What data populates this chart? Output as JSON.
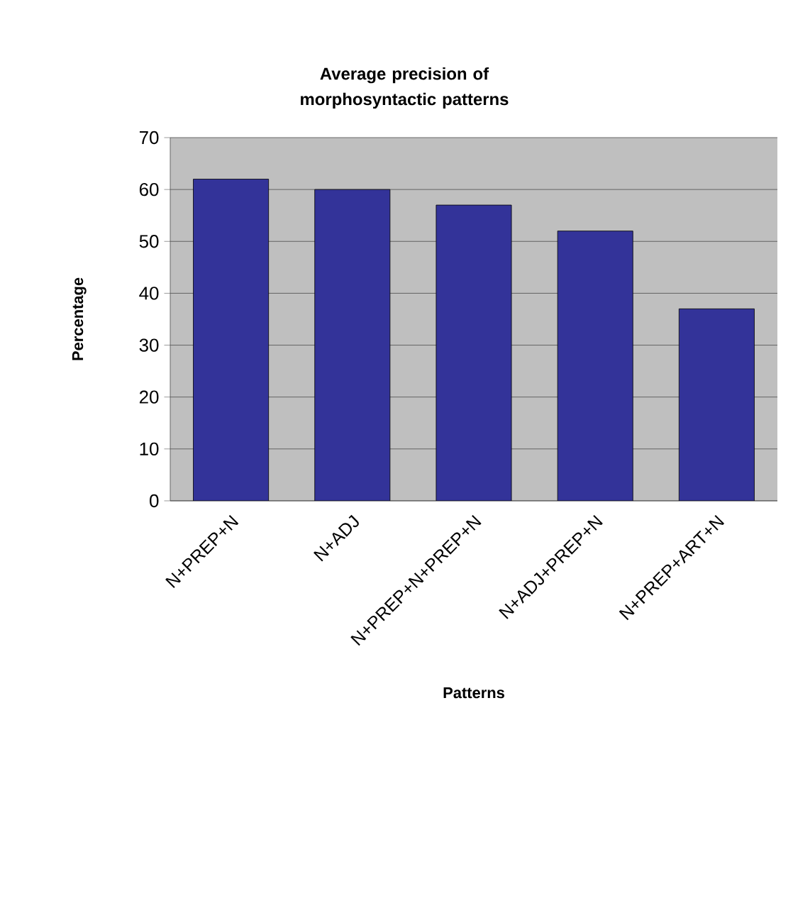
{
  "chart_data": {
    "type": "bar",
    "title": "Average precision of morphosyntactic patterns",
    "xlabel": "Patterns",
    "ylabel": "Percentage",
    "categories": [
      "N+PREP+N",
      "N+ADJ",
      "N+PREP+N+PREP+N",
      "N+ADJ+PREP+N",
      "N+PREP+ART+N"
    ],
    "values": [
      62,
      60,
      57,
      52,
      37
    ],
    "color": "#333399",
    "ylim": [
      0,
      70
    ],
    "yticks": [
      0,
      10,
      20,
      30,
      40,
      50,
      60,
      70
    ],
    "grid": "y"
  }
}
